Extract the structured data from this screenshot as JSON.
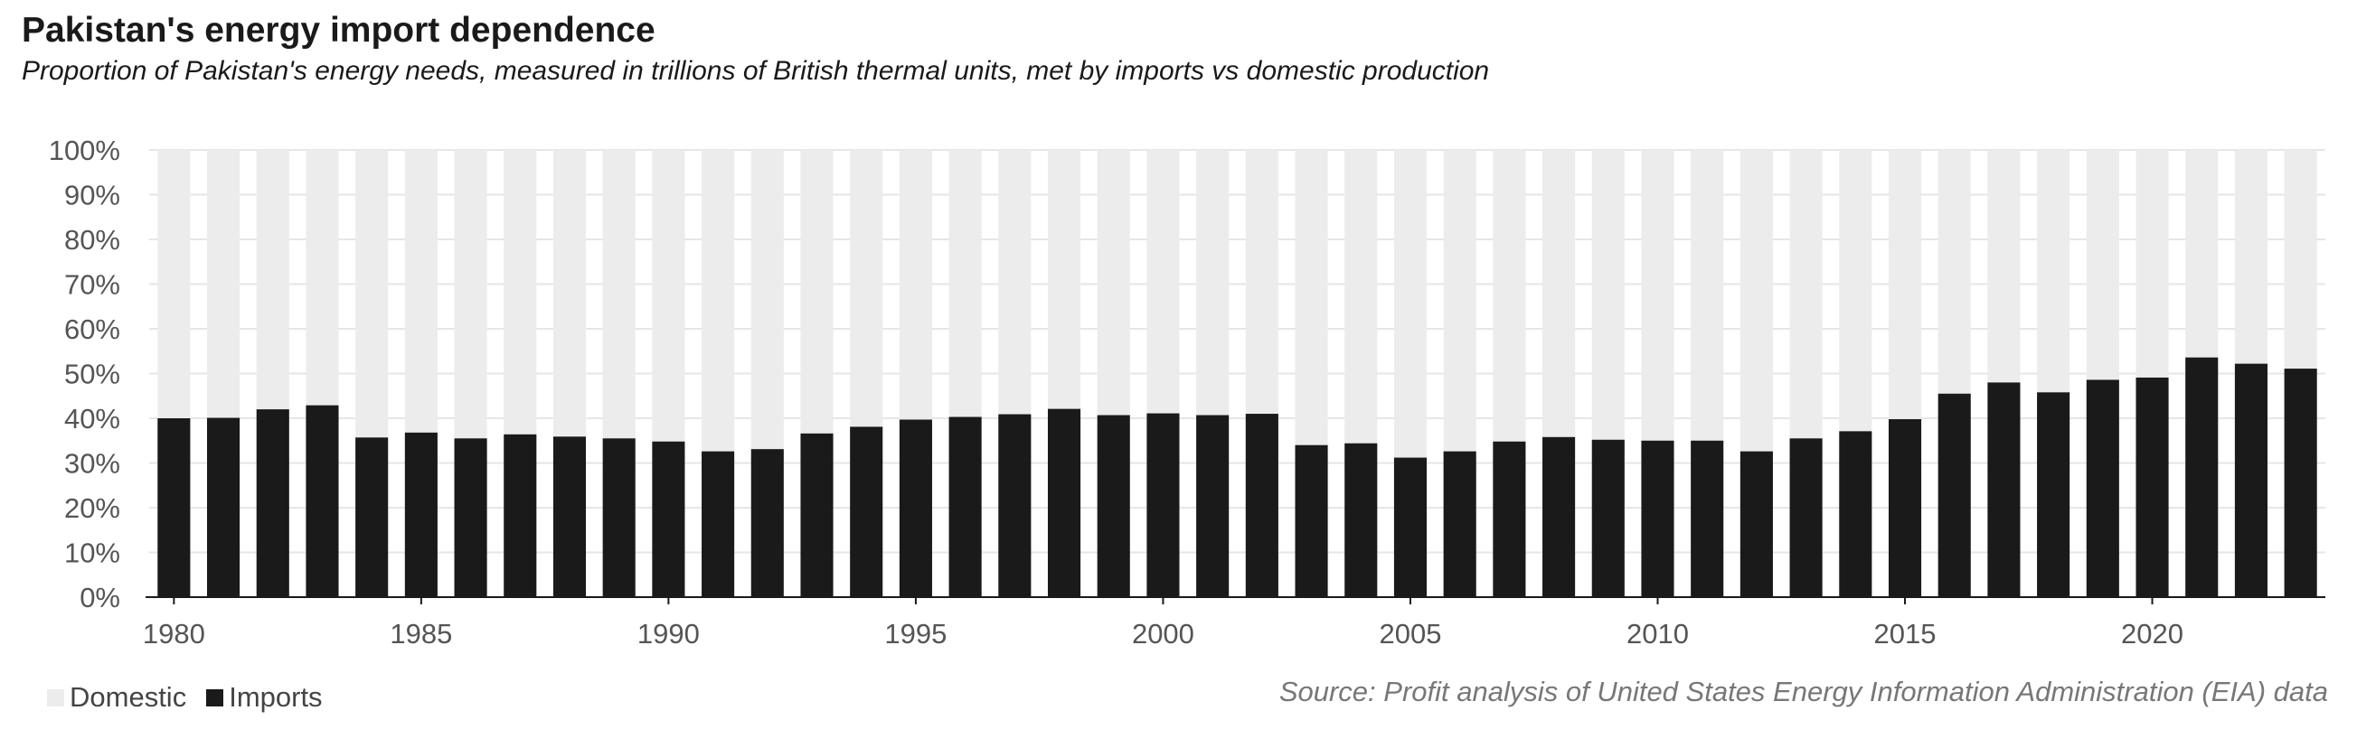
{
  "chart_data": {
    "type": "bar",
    "stacked": true,
    "title": "Pakistan's energy import dependence",
    "subtitle": "Proportion of Pakistan's energy needs, measured in trillions of British thermal units, met by imports vs domestic production",
    "source": "Source: Profit analysis of United States Energy Information Administration (EIA) data",
    "categories": [
      1980,
      1981,
      1982,
      1983,
      1984,
      1985,
      1986,
      1987,
      1988,
      1989,
      1990,
      1991,
      1992,
      1993,
      1994,
      1995,
      1996,
      1997,
      1998,
      1999,
      2000,
      2001,
      2002,
      2003,
      2004,
      2005,
      2006,
      2007,
      2008,
      2009,
      2010,
      2011,
      2012,
      2013,
      2014,
      2015,
      2016,
      2017,
      2018,
      2019,
      2020,
      2021,
      2022,
      2023
    ],
    "x_tick_labels": [
      "1980",
      "1985",
      "1990",
      "1995",
      "2000",
      "2005",
      "2010",
      "2015",
      "2020"
    ],
    "y_tick_labels": [
      "0%",
      "10%",
      "20%",
      "30%",
      "40%",
      "50%",
      "60%",
      "70%",
      "80%",
      "90%",
      "100%"
    ],
    "ylim": [
      0,
      100
    ],
    "grid": true,
    "legend_position": "bottom-left",
    "series": [
      {
        "name": "Imports",
        "color": "#1a1a1a",
        "values": [
          40.0,
          40.1,
          42.0,
          42.9,
          35.7,
          36.8,
          35.5,
          36.4,
          35.9,
          35.5,
          34.8,
          32.6,
          33.1,
          36.6,
          38.1,
          39.7,
          40.3,
          40.9,
          42.1,
          40.7,
          41.1,
          40.7,
          41.0,
          34.0,
          34.4,
          31.2,
          32.6,
          34.8,
          35.8,
          35.2,
          35.0,
          35.0,
          32.6,
          35.5,
          37.1,
          39.8,
          45.5,
          48.0,
          45.8,
          48.6,
          49.1,
          53.6,
          52.2,
          51.1
        ]
      },
      {
        "name": "Domestic",
        "color": "#ececec",
        "values": [
          60.0,
          59.9,
          58.0,
          57.1,
          64.3,
          63.2,
          64.5,
          63.6,
          64.1,
          64.5,
          65.2,
          67.4,
          66.9,
          63.4,
          61.9,
          60.3,
          59.7,
          59.1,
          57.9,
          59.3,
          58.9,
          59.3,
          59.0,
          66.0,
          65.6,
          68.8,
          67.4,
          65.2,
          64.2,
          64.8,
          65.0,
          65.0,
          67.4,
          64.5,
          62.9,
          60.2,
          54.5,
          52.0,
          54.2,
          51.4,
          50.9,
          46.4,
          47.8,
          48.9
        ]
      }
    ],
    "legend": [
      {
        "label": "Domestic",
        "color": "#ececec"
      },
      {
        "label": "Imports",
        "color": "#1a1a1a"
      }
    ]
  }
}
